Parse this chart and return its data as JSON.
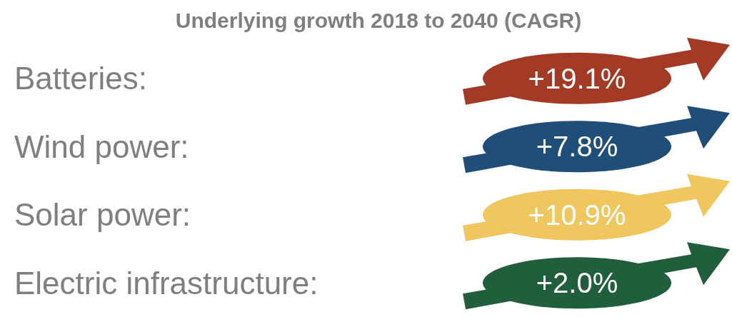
{
  "chart_data": {
    "type": "other",
    "title": "Underlying growth 2018 to 2040 (CAGR)",
    "categories": [
      "Batteries",
      "Wind power",
      "Solar power",
      "Electric infrastructure"
    ],
    "annotations": [
      ":",
      ":",
      ":",
      ":"
    ],
    "values": [
      19.1,
      7.8,
      10.9,
      2.0
    ],
    "value_labels": [
      "+19.1%",
      "+7.8%",
      "+10.9%",
      "+2.0%"
    ],
    "colors": [
      "#a33a25",
      "#1f4e79",
      "#f0c75e",
      "#215e3c"
    ]
  }
}
